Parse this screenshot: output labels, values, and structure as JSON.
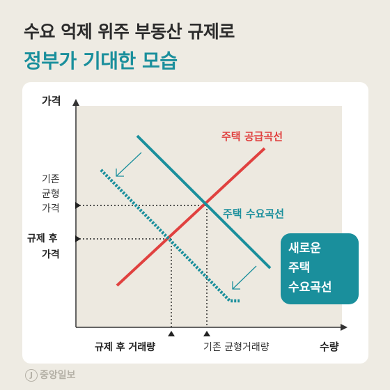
{
  "title_line1": "수요 억제 위주 부동산 규제로",
  "title_line2": "정부가 기대한 모습",
  "axis": {
    "y_label": "가격",
    "x_label": "수량"
  },
  "labels": {
    "supply_curve": "주택 공급곡선",
    "demand_curve": "주택 수요곡선",
    "new_demand_line1": "새로운",
    "new_demand_line2": "주택",
    "new_demand_line3": "수요곡선",
    "orig_price_line1": "기존",
    "orig_price_line2": "균형",
    "orig_price_line3": "가격",
    "post_price_line1": "규제 후",
    "post_price_line2": "가격",
    "post_qty": "규제 후 거래량",
    "orig_qty": "기존 균형거래량"
  },
  "colors": {
    "supply": "#e0413f",
    "demand": "#1a8f9c",
    "accent_box": "#1a8f9c"
  },
  "footer": {
    "logo_mark": "J",
    "logo_text": "중앙일보"
  }
}
